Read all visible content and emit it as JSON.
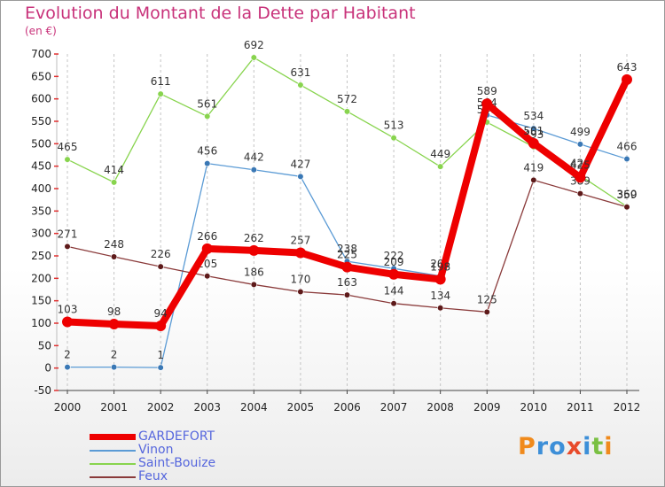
{
  "title": "Evolution du Montant de la Dette par Habitant",
  "subtitle": "(en €)",
  "brand": {
    "text": "Proxiti"
  },
  "chart_data": {
    "type": "line",
    "title": "Evolution du Montant de la Dette par Habitant",
    "ylabel": "(en €)",
    "xlabel": "",
    "categories": [
      "2000",
      "2001",
      "2002",
      "2003",
      "2004",
      "2005",
      "2006",
      "2007",
      "2008",
      "2009",
      "2010",
      "2011",
      "2012"
    ],
    "ylim": [
      -50,
      700
    ],
    "ystep": 50,
    "grid": "vertical dashed",
    "legend": "bottom-left",
    "series": [
      {
        "name": "Vinon",
        "color": "#5b9bd5",
        "marker": "#3a78b5",
        "values": [
          2,
          2,
          1,
          456,
          442,
          427,
          238,
          222,
          205,
          564,
          534,
          499,
          466
        ],
        "labels": [
          "2",
          "2",
          "1",
          "456",
          "442",
          "427",
          "238",
          "222",
          "205",
          "564",
          "534",
          "499",
          "466"
        ]
      },
      {
        "name": "Saint-Bouize",
        "color": "#88d44e",
        "marker": "#88d44e",
        "values": [
          465,
          414,
          611,
          561,
          692,
          631,
          572,
          513,
          449,
          548,
          493,
          429,
          360
        ],
        "labels": [
          "465",
          "414",
          "611",
          "561",
          "692",
          "631",
          "572",
          "513",
          "449",
          "548",
          "493",
          "429",
          "360"
        ]
      },
      {
        "name": "Feux",
        "color": "#8a3a3a",
        "marker": "#5e1a1a",
        "values": [
          271,
          248,
          226,
          205,
          186,
          170,
          163,
          144,
          134,
          125,
          419,
          389,
          359
        ],
        "labels": [
          "271",
          "248",
          "226",
          "205",
          "186",
          "170",
          "163",
          "144",
          "134",
          "125",
          "419",
          "389",
          "359"
        ]
      },
      {
        "name": "GARDEFORT",
        "color": "#ee0000",
        "marker": "#ee0000",
        "values": [
          103,
          98,
          94,
          266,
          262,
          257,
          225,
          209,
          198,
          589,
          501,
          425,
          643
        ],
        "labels": [
          "103",
          "98",
          "94",
          "266",
          "262",
          "257",
          "225",
          "209",
          "198",
          "589",
          "501",
          "425",
          "643"
        ]
      }
    ],
    "legend_order": [
      "GARDEFORT",
      "Vinon",
      "Saint-Bouize",
      "Feux"
    ]
  }
}
